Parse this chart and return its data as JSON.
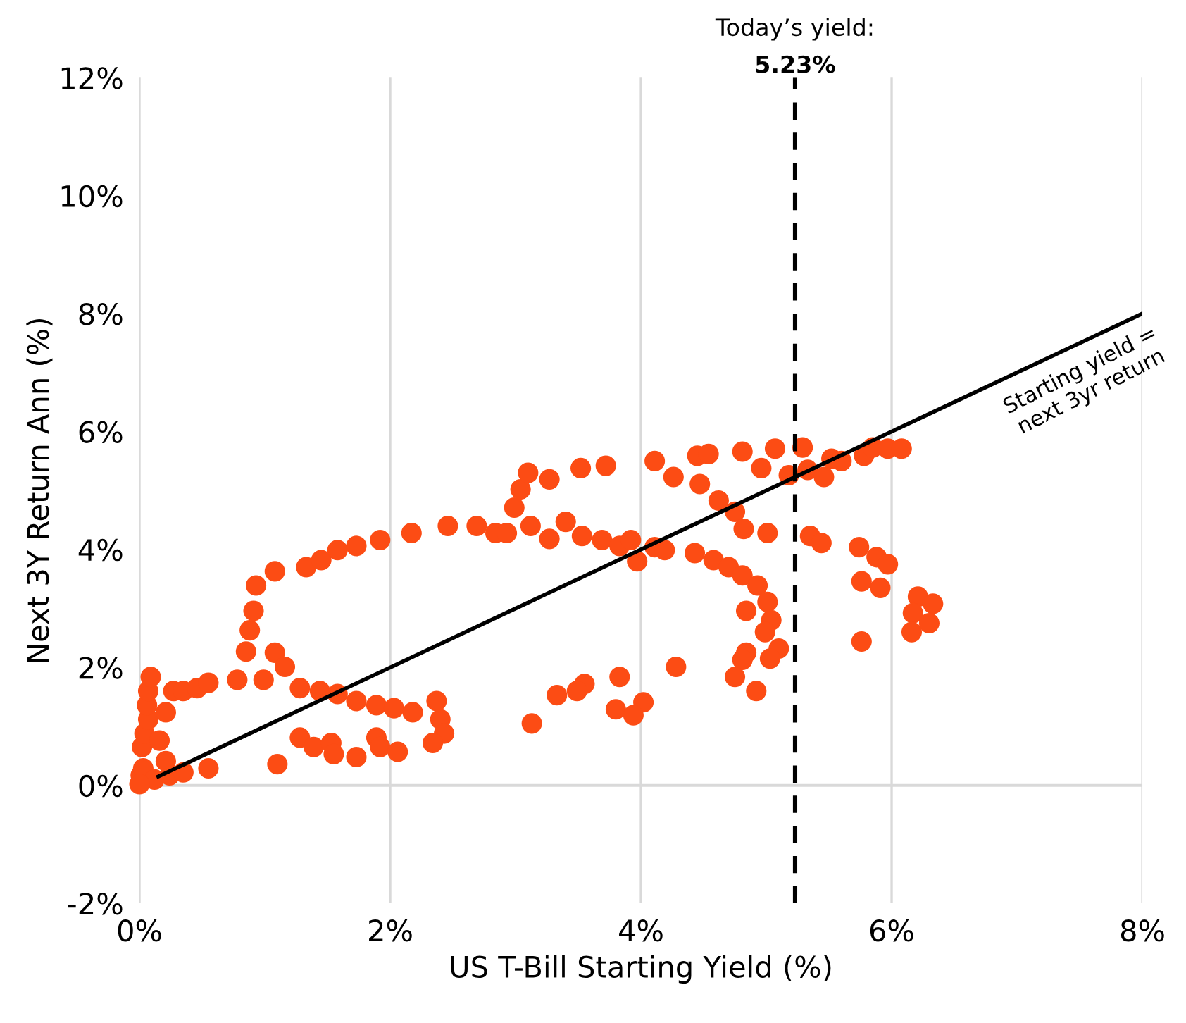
{
  "chart_data": {
    "type": "scatter",
    "xlabel": "US T-Bill Starting Yield (%)",
    "ylabel": "Next 3Y Return Ann (%)",
    "xlim": [
      0,
      8
    ],
    "ylim": [
      -2,
      12
    ],
    "xticks": [
      {
        "value": 0,
        "label": "0%"
      },
      {
        "value": 2,
        "label": "2%"
      },
      {
        "value": 4,
        "label": "4%"
      },
      {
        "value": 6,
        "label": "6%"
      },
      {
        "value": 8,
        "label": "8%"
      }
    ],
    "yticks": [
      {
        "value": -2,
        "label": "-2%"
      },
      {
        "value": 0,
        "label": "0%"
      },
      {
        "value": 2,
        "label": "2%"
      },
      {
        "value": 4,
        "label": "4%"
      },
      {
        "value": 6,
        "label": "6%"
      },
      {
        "value": 8,
        "label": "8%"
      },
      {
        "value": 10,
        "label": "10%"
      },
      {
        "value": 12,
        "label": "12%"
      }
    ],
    "grid": "x",
    "marker": "circle",
    "legend": false,
    "series": [
      {
        "color": "#fc4c14",
        "x": [
          0.01,
          0.03,
          0.02,
          0.04,
          0.07,
          0.06,
          0.07,
          0.09,
          0.12,
          0.24,
          0.35,
          0.21,
          0.16,
          0.21,
          0.27,
          0.35,
          0.46,
          0.55,
          0.55,
          1.1,
          0.78,
          0.85,
          0.88,
          0.91,
          0.93,
          1.08,
          1.33,
          1.45,
          1.58,
          1.73,
          1.92,
          2.17,
          2.46,
          2.69,
          2.84,
          2.93,
          2.99,
          3.04,
          3.1,
          3.27,
          3.52,
          3.72,
          4.11,
          3.12,
          3.27,
          3.4,
          3.53,
          3.69,
          3.83,
          3.92,
          3.97,
          4.11,
          4.19,
          4.26,
          4.43,
          4.45,
          4.54,
          4.47,
          4.62,
          4.75,
          4.82,
          5.01,
          4.81,
          5.07,
          4.58,
          4.7,
          4.81,
          4.93,
          5.01,
          5.04,
          4.84,
          4.99,
          5.1,
          5.03,
          4.84,
          4.81,
          4.75,
          4.92,
          4.28,
          3.83,
          3.55,
          3.49,
          3.33,
          4.02,
          3.8,
          3.94,
          3.13,
          4.96,
          5.18,
          5.33,
          5.46,
          5.52,
          5.6,
          5.78,
          5.85,
          5.97,
          6.08,
          5.29,
          5.35,
          5.44,
          5.74,
          5.88,
          5.97,
          5.76,
          5.91,
          6.21,
          6.33,
          6.17,
          6.3,
          6.16,
          5.76,
          1.08,
          1.16,
          0.99,
          1.28,
          1.44,
          1.58,
          1.73,
          1.89,
          2.03,
          2.18,
          2.37,
          2.4,
          2.43,
          2.34,
          1.28,
          1.39,
          1.53,
          1.55,
          1.73,
          1.89,
          1.92,
          2.06,
          0.0
        ],
        "values": [
          0.17,
          0.29,
          0.65,
          0.88,
          1.12,
          1.36,
          1.6,
          1.84,
          0.1,
          0.17,
          0.22,
          0.41,
          0.76,
          1.24,
          1.6,
          1.6,
          1.65,
          1.74,
          0.29,
          0.36,
          1.79,
          2.27,
          2.63,
          2.96,
          3.39,
          3.63,
          3.7,
          3.82,
          3.99,
          4.06,
          4.16,
          4.28,
          4.4,
          4.4,
          4.28,
          4.28,
          4.71,
          5.02,
          5.3,
          5.19,
          5.38,
          5.42,
          5.5,
          4.4,
          4.18,
          4.47,
          4.23,
          4.16,
          4.06,
          4.16,
          3.8,
          4.04,
          3.99,
          5.23,
          3.94,
          5.59,
          5.62,
          5.11,
          4.83,
          4.64,
          4.35,
          4.28,
          5.66,
          5.71,
          3.82,
          3.7,
          3.56,
          3.39,
          3.11,
          2.8,
          2.96,
          2.6,
          2.32,
          2.15,
          2.25,
          2.13,
          1.84,
          1.6,
          2.01,
          1.84,
          1.72,
          1.6,
          1.53,
          1.41,
          1.29,
          1.19,
          1.05,
          5.38,
          5.26,
          5.35,
          5.23,
          5.54,
          5.5,
          5.59,
          5.73,
          5.71,
          5.71,
          5.73,
          4.23,
          4.11,
          4.04,
          3.87,
          3.75,
          3.46,
          3.35,
          3.2,
          3.08,
          2.92,
          2.75,
          2.6,
          2.44,
          2.25,
          2.01,
          1.79,
          1.65,
          1.6,
          1.55,
          1.43,
          1.36,
          1.31,
          1.24,
          1.43,
          1.12,
          0.88,
          0.72,
          0.81,
          0.65,
          0.72,
          0.53,
          0.48,
          0.81,
          0.65,
          0.57,
          0.02
        ]
      },
      {
        "type": "line",
        "color": "#000000",
        "x": [
          0.15,
          8
        ],
        "values": [
          0.15,
          8
        ],
        "line_style": "solid",
        "marker": "none"
      }
    ],
    "ref_lines": [
      {
        "axis": "x",
        "value": 5.23,
        "label": "Today’s yield:\n5.23%",
        "color": "#000000",
        "line_style": "dashed"
      },
      {
        "axis": "y",
        "value": 0,
        "color": "#d9d9d9",
        "line_style": "solid"
      }
    ],
    "annotations": [
      "Starting yield =\nnext 3yr return"
    ]
  }
}
